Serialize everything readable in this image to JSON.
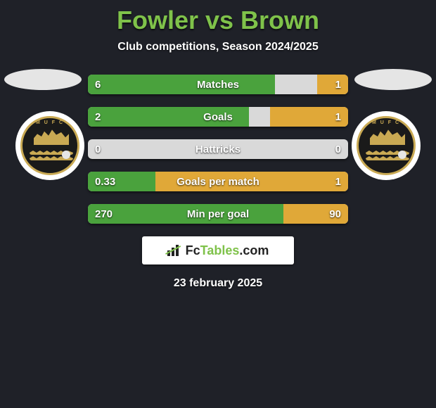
{
  "title": "Fowler vs Brown",
  "subtitle": "Club competitions, Season 2024/2025",
  "date": "23 february 2025",
  "colors": {
    "left_bar": "#4aa23d",
    "right_bar": "#e0a838",
    "neutral_bar": "#d9d9d9",
    "title": "#7fc24a",
    "text": "#ffffff",
    "background": "#1f2128"
  },
  "logo": {
    "text_fc": "Fc",
    "text_tables": "Tables",
    "text_com": ".com"
  },
  "stats": [
    {
      "label": "Matches",
      "left_value": "6",
      "right_value": "1",
      "left_width_pct": 72,
      "right_width_pct": 12
    },
    {
      "label": "Goals",
      "left_value": "2",
      "right_value": "1",
      "left_width_pct": 62,
      "right_width_pct": 30
    },
    {
      "label": "Hattricks",
      "left_value": "0",
      "right_value": "0",
      "left_width_pct": 0,
      "right_width_pct": 0
    },
    {
      "label": "Goals per match",
      "left_value": "0.33",
      "right_value": "1",
      "left_width_pct": 26,
      "right_width_pct": 74
    },
    {
      "label": "Min per goal",
      "left_value": "270",
      "right_value": "90",
      "left_width_pct": 75,
      "right_width_pct": 25
    }
  ]
}
